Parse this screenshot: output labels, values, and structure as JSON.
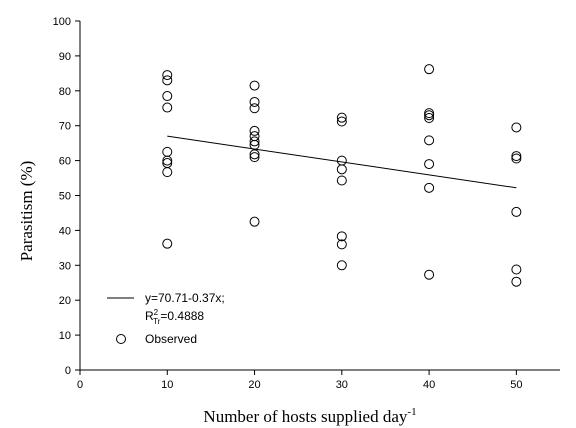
{
  "chart_data": {
    "type": "scatter",
    "xlabel": "Number of hosts supplied day",
    "xlabel_superscript": "-1",
    "ylabel": "Parasitism (%)",
    "xlim": [
      0,
      55
    ],
    "ylim": [
      0,
      100
    ],
    "xticks": [
      0,
      10,
      20,
      30,
      40,
      50
    ],
    "yticks": [
      0,
      10,
      20,
      30,
      40,
      50,
      60,
      70,
      80,
      90,
      100
    ],
    "grid": false,
    "legend_position": "bottom-left",
    "series": [
      {
        "name": "Observed",
        "kind": "scatter",
        "marker": "open-circle",
        "points": [
          {
            "x": 10,
            "y": 84.5
          },
          {
            "x": 10,
            "y": 83.0
          },
          {
            "x": 10,
            "y": 78.5
          },
          {
            "x": 10,
            "y": 75.2
          },
          {
            "x": 10,
            "y": 62.5
          },
          {
            "x": 10,
            "y": 60.0
          },
          {
            "x": 10,
            "y": 59.3
          },
          {
            "x": 10,
            "y": 56.7
          },
          {
            "x": 10,
            "y": 36.2
          },
          {
            "x": 20,
            "y": 81.5
          },
          {
            "x": 20,
            "y": 76.8
          },
          {
            "x": 20,
            "y": 75.0
          },
          {
            "x": 20,
            "y": 68.5
          },
          {
            "x": 20,
            "y": 67.0
          },
          {
            "x": 20,
            "y": 65.5
          },
          {
            "x": 20,
            "y": 64.5
          },
          {
            "x": 20,
            "y": 61.8
          },
          {
            "x": 20,
            "y": 61.0
          },
          {
            "x": 20,
            "y": 42.5
          },
          {
            "x": 30,
            "y": 72.3
          },
          {
            "x": 30,
            "y": 71.2
          },
          {
            "x": 30,
            "y": 60.0
          },
          {
            "x": 30,
            "y": 57.5
          },
          {
            "x": 30,
            "y": 54.3
          },
          {
            "x": 30,
            "y": 38.3
          },
          {
            "x": 30,
            "y": 36.0
          },
          {
            "x": 30,
            "y": 30.0
          },
          {
            "x": 40,
            "y": 86.2
          },
          {
            "x": 40,
            "y": 73.6
          },
          {
            "x": 40,
            "y": 73.0
          },
          {
            "x": 40,
            "y": 72.2
          },
          {
            "x": 40,
            "y": 65.8
          },
          {
            "x": 40,
            "y": 59.0
          },
          {
            "x": 40,
            "y": 52.2
          },
          {
            "x": 40,
            "y": 27.3
          },
          {
            "x": 50,
            "y": 69.5
          },
          {
            "x": 50,
            "y": 61.3
          },
          {
            "x": 50,
            "y": 60.6
          },
          {
            "x": 50,
            "y": 45.3
          },
          {
            "x": 50,
            "y": 28.8
          },
          {
            "x": 50,
            "y": 25.3
          }
        ]
      },
      {
        "name": "y=70.71-0.37x; R2Tr=0.4888",
        "kind": "line",
        "intercept": 70.71,
        "slope": -0.37,
        "x_range": [
          10,
          50
        ]
      }
    ],
    "legend": {
      "fit_label": "y=70.71-0.37x;",
      "r2_prefix": "R",
      "r2_sup": "2",
      "r2_sub": "Tr",
      "r2_value": "=0.4888",
      "observed_label": "Observed"
    }
  }
}
